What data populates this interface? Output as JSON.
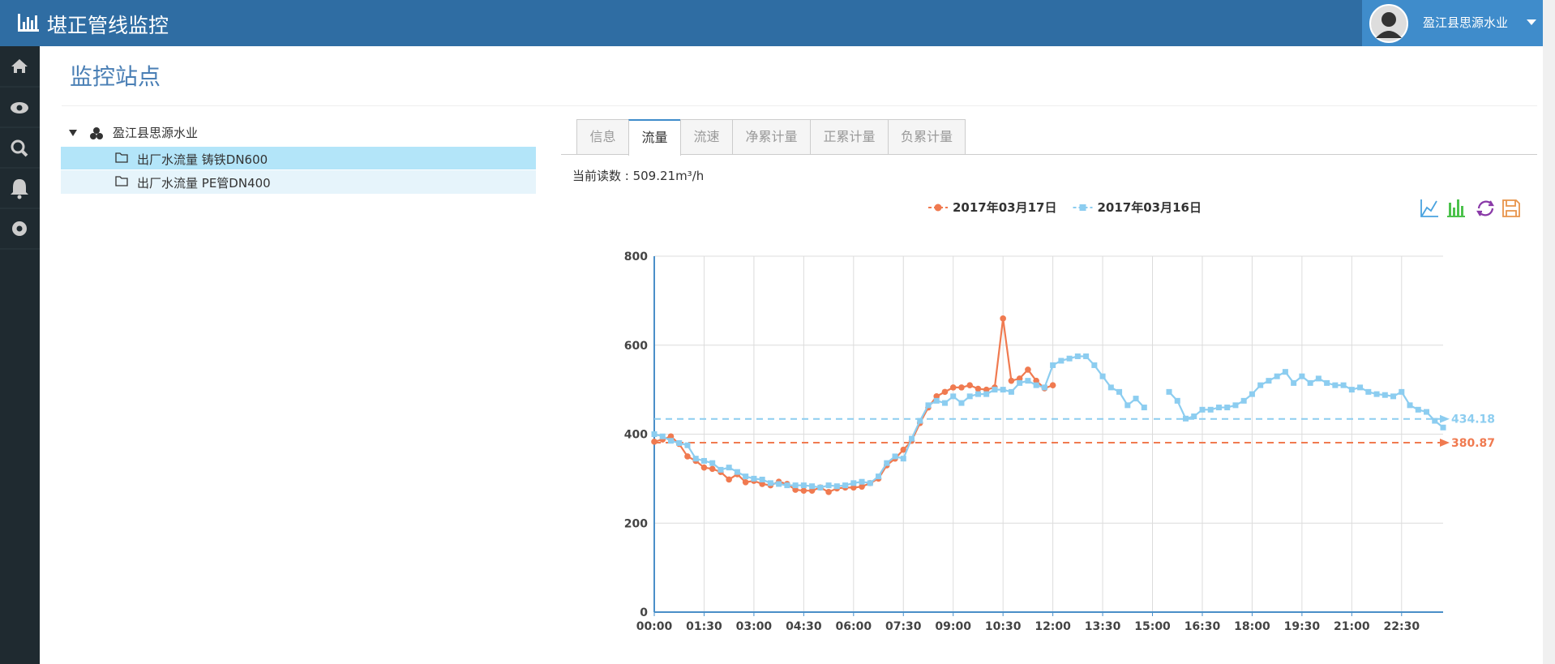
{
  "header": {
    "title": "堪正管线监控",
    "user": "盈江县思源水业"
  },
  "page_title": "监控站点",
  "tree": {
    "root": "盈江县思源水业",
    "items": [
      "出厂水流量 铸铁DN600",
      "出厂水流量 PE管DN400"
    ]
  },
  "tabs": [
    "信息",
    "流量",
    "流速",
    "净累计量",
    "正累计量",
    "负累计量"
  ],
  "reading": "当前读数 : 509.21m³/h",
  "chart_data": {
    "type": "line",
    "x": [
      0,
      15,
      30,
      45,
      60,
      75,
      90,
      105,
      120,
      135,
      150,
      165,
      180,
      195,
      210,
      225,
      240,
      255,
      270,
      285,
      300,
      315,
      330,
      345,
      360,
      375,
      390,
      405,
      420,
      435,
      450,
      465,
      480,
      495,
      510,
      525,
      540,
      555,
      570,
      585,
      600,
      615,
      630,
      645,
      660,
      675,
      690,
      705,
      720,
      735,
      750,
      765,
      780,
      795,
      810,
      825,
      840,
      855,
      870,
      885,
      900,
      915,
      930,
      945,
      960,
      975,
      990,
      1005,
      1020,
      1035,
      1050,
      1065,
      1080,
      1095,
      1110,
      1125,
      1140,
      1155,
      1170,
      1185,
      1200,
      1215,
      1230,
      1245,
      1260,
      1275,
      1290,
      1305,
      1320,
      1335,
      1350,
      1365,
      1380,
      1395,
      1410,
      1425
    ],
    "xlim": [
      0,
      1425
    ],
    "xticks": [
      {
        "value": 0,
        "label": "00:00"
      },
      {
        "value": 90,
        "label": "01:30"
      },
      {
        "value": 180,
        "label": "03:00"
      },
      {
        "value": 270,
        "label": "04:30"
      },
      {
        "value": 360,
        "label": "06:00"
      },
      {
        "value": 450,
        "label": "07:30"
      },
      {
        "value": 540,
        "label": "09:00"
      },
      {
        "value": 630,
        "label": "10:30"
      },
      {
        "value": 720,
        "label": "12:00"
      },
      {
        "value": 810,
        "label": "13:30"
      },
      {
        "value": 900,
        "label": "15:00"
      },
      {
        "value": 990,
        "label": "16:30"
      },
      {
        "value": 1080,
        "label": "18:00"
      },
      {
        "value": 1170,
        "label": "19:30"
      },
      {
        "value": 1260,
        "label": "21:00"
      },
      {
        "value": 1350,
        "label": "22:30"
      }
    ],
    "ylim": [
      0,
      800
    ],
    "yticks": [
      0,
      200,
      400,
      600,
      800
    ],
    "grid": true,
    "series": [
      {
        "name": "2017年03月17日",
        "color": "#f07a50",
        "marker": "circle",
        "average": 380.87,
        "values": [
          383,
          388,
          395,
          378,
          350,
          340,
          325,
          322,
          315,
          298,
          310,
          292,
          295,
          288,
          285,
          293,
          288,
          275,
          273,
          273,
          280,
          270,
          278,
          280,
          280,
          282,
          290,
          300,
          330,
          345,
          365,
          385,
          425,
          460,
          485,
          495,
          505,
          505,
          510,
          502,
          500,
          505,
          660,
          520,
          525,
          545,
          520,
          503,
          510,
          null,
          null,
          null,
          null,
          null,
          null,
          null,
          null,
          null,
          null,
          null,
          null,
          null,
          null,
          null,
          null,
          null,
          null,
          null,
          null,
          null,
          null,
          null,
          null,
          null,
          null,
          null,
          null,
          null,
          null,
          null,
          null,
          null,
          null,
          null,
          null,
          null,
          null,
          null,
          null,
          null,
          null,
          null,
          null,
          null,
          null,
          null
        ]
      },
      {
        "name": "2017年03月16日",
        "color": "#8ccdf0",
        "marker": "square",
        "average": 434.18,
        "values": [
          400,
          395,
          385,
          380,
          375,
          345,
          340,
          335,
          320,
          325,
          315,
          305,
          300,
          298,
          290,
          288,
          285,
          285,
          285,
          283,
          280,
          285,
          283,
          285,
          290,
          293,
          290,
          305,
          335,
          350,
          345,
          390,
          430,
          465,
          475,
          470,
          485,
          470,
          485,
          490,
          490,
          500,
          500,
          495,
          515,
          520,
          510,
          505,
          555,
          565,
          570,
          575,
          575,
          555,
          530,
          505,
          495,
          465,
          480,
          460,
          null,
          null,
          495,
          475,
          435,
          440,
          455,
          455,
          460,
          460,
          465,
          475,
          490,
          510,
          520,
          530,
          540,
          515,
          530,
          515,
          525,
          515,
          510,
          510,
          500,
          505,
          495,
          490,
          488,
          485,
          495,
          465,
          455,
          450,
          430,
          415
        ]
      }
    ]
  }
}
